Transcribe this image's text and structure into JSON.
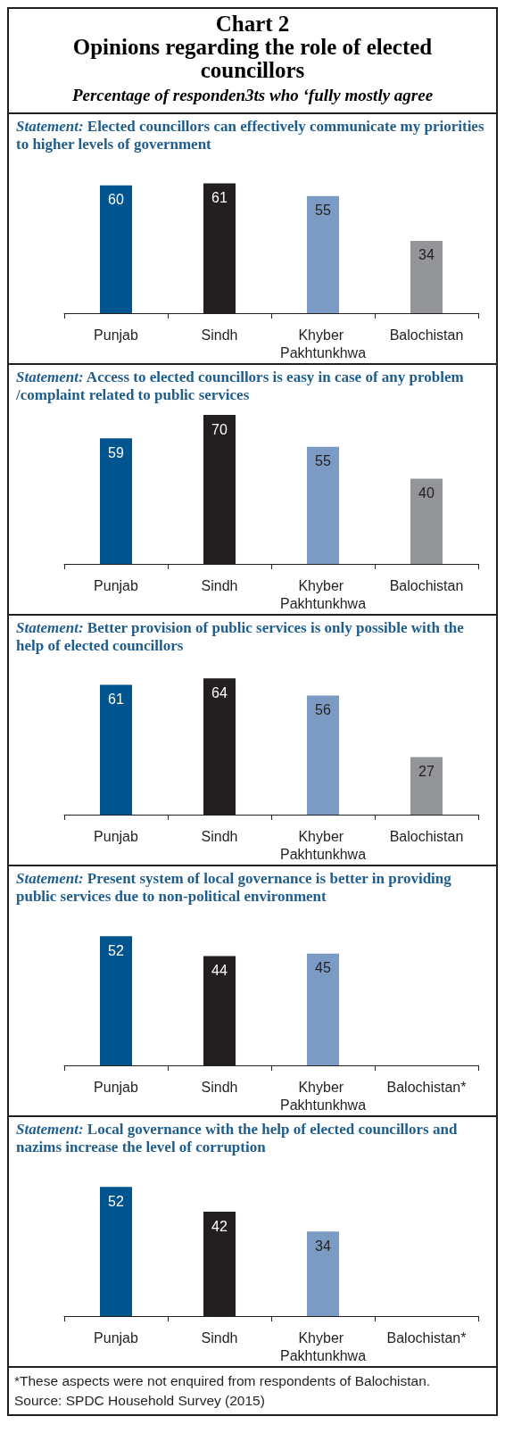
{
  "chart_data": [
    {
      "type": "bar",
      "title": "Chart 2\nOpinions regarding the role of elected councillors",
      "subtitle": "Percentage of responden3ts who ‘fully mostly agree",
      "annotations": [
        "Statement: Elected councillors can effectively communicate my priorities to higher levels of government"
      ],
      "categories": [
        "Punjab",
        "Sindh",
        "Khyber Pakhtunkhwa",
        "Balochistan"
      ],
      "values": [
        60,
        61,
        55,
        34
      ],
      "colors": [
        "#00558f",
        "#231f20",
        "#7b9bc4",
        "#939598"
      ],
      "data_labels": true
    },
    {
      "type": "bar",
      "annotations": [
        "Statement: Access to elected councillors is easy in case of any problem /complaint related to public services"
      ],
      "categories": [
        "Punjab",
        "Sindh",
        "Khyber Pakhtunkhwa",
        "Balochistan"
      ],
      "values": [
        59,
        70,
        55,
        40
      ],
      "colors": [
        "#00558f",
        "#231f20",
        "#7b9bc4",
        "#939598"
      ],
      "data_labels": true
    },
    {
      "type": "bar",
      "annotations": [
        "Statement: Better provision of public services is only possible with the help of elected councillors"
      ],
      "categories": [
        "Punjab",
        "Sindh",
        "Khyber Pakhtunkhwa",
        "Balochistan"
      ],
      "values": [
        61,
        64,
        56,
        27
      ],
      "colors": [
        "#00558f",
        "#231f20",
        "#7b9bc4",
        "#939598"
      ],
      "data_labels": true
    },
    {
      "type": "bar",
      "annotations": [
        "Statement: Present system of local governance is better in providing public services due to non-political environment"
      ],
      "categories": [
        "Punjab",
        "Sindh",
        "Khyber Pakhtunkhwa",
        "Balochistan*"
      ],
      "values": [
        52,
        44,
        45,
        null
      ],
      "colors": [
        "#00558f",
        "#231f20",
        "#7b9bc4",
        "#939598"
      ],
      "data_labels": true
    },
    {
      "type": "bar",
      "annotations": [
        "Statement: Local governance with the help of elected councillors and nazims increase the level of corruption",
        "*These aspects were not enquired from respondents of Balochistan.",
        "Source: SPDC Household Survey (2015)"
      ],
      "categories": [
        "Punjab",
        "Sindh",
        "Khyber Pakhtunkhwa",
        "Balochistan*"
      ],
      "values": [
        52,
        42,
        34,
        null
      ],
      "colors": [
        "#00558f",
        "#231f20",
        "#7b9bc4",
        "#939598"
      ],
      "data_labels": true
    }
  ]
}
